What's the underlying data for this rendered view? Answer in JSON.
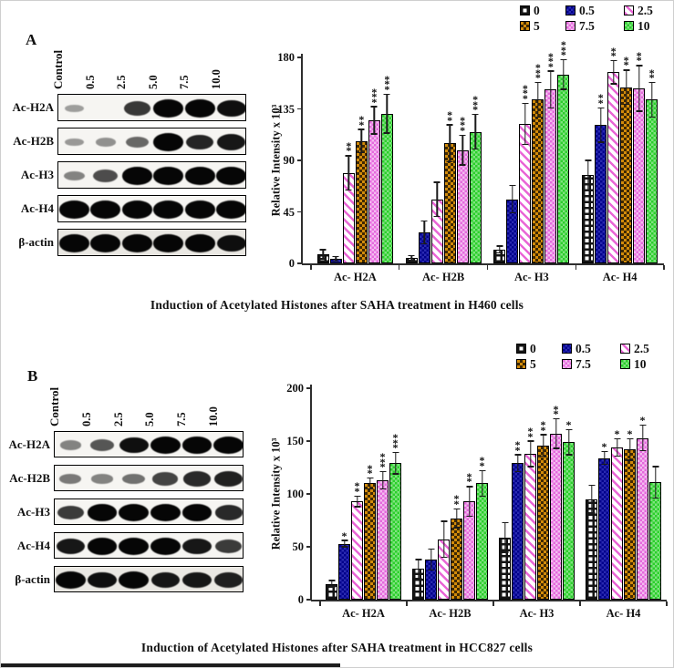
{
  "colors": {
    "dose_0_pattern": "#141414",
    "dose_05_navy": "#00008b",
    "dose_25_pink_stripe": "#e966d6",
    "dose_5_orange": "#d28b0a",
    "dose_75_violet": "#e569dd",
    "dose_10_green": "#2bcf2b",
    "axis": "#2e2e2e"
  },
  "legend": {
    "items": [
      {
        "label": "0",
        "dose": "d0",
        "swatch": "white-black-checker"
      },
      {
        "label": "0.5",
        "dose": "d05",
        "swatch": "solid-navy"
      },
      {
        "label": "2.5",
        "dose": "d25",
        "swatch": "pink-diagonal-stripes"
      },
      {
        "label": "5",
        "dose": "d5",
        "swatch": "orange-black-checks"
      },
      {
        "label": "7.5",
        "dose": "d75",
        "swatch": "violet-white-checks"
      },
      {
        "label": "10",
        "dose": "d10",
        "swatch": "green-checks"
      }
    ]
  },
  "panels": [
    {
      "label": "A",
      "caption": "Induction of Acetylated Histones after SAHA treatment in H460 cells",
      "blot": {
        "lane_headers": [
          "Control",
          "0.5",
          "2.5",
          "5.0",
          "7.5",
          "10.0"
        ],
        "rows": [
          {
            "label": "Ac-H2A",
            "band_intensities": [
              0.15,
              0.03,
              0.72,
              1,
              1,
              0.95
            ]
          },
          {
            "label": "Ac-H2B",
            "band_intensities": [
              0.18,
              0.22,
              0.45,
              1,
              0.82,
              0.9
            ]
          },
          {
            "label": "Ac-H3",
            "band_intensities": [
              0.3,
              0.6,
              1,
              1,
              1,
              1
            ]
          },
          {
            "label": "Ac-H4",
            "band_intensities": [
              1,
              1,
              1,
              1,
              1,
              1
            ]
          },
          {
            "label": "β-actin",
            "band_intensities": [
              1,
              1,
              1,
              1,
              1,
              0.95
            ]
          }
        ]
      }
    },
    {
      "label": "B",
      "caption": "Induction of Acetylated Histones after SAHA treatment in HCC827 cells",
      "blot": {
        "lane_headers": [
          "Control",
          "0.5",
          "2.5",
          "5.0",
          "7.5",
          "10.0"
        ],
        "rows": [
          {
            "label": "Ac-H2A",
            "band_intensities": [
              0.3,
              0.55,
              0.95,
              1,
              1,
              1
            ]
          },
          {
            "label": "Ac-H2B",
            "band_intensities": [
              0.35,
              0.3,
              0.4,
              0.65,
              0.8,
              0.85
            ]
          },
          {
            "label": "Ac-H3",
            "band_intensities": [
              0.7,
              1,
              1,
              1,
              1,
              0.8
            ]
          },
          {
            "label": "Ac-H4",
            "band_intensities": [
              0.9,
              1,
              1,
              1,
              0.9,
              0.7
            ]
          },
          {
            "label": "β-actin",
            "band_intensities": [
              1,
              0.95,
              1,
              0.9,
              0.9,
              0.85
            ]
          }
        ]
      }
    }
  ],
  "chart_data": [
    {
      "type": "bar",
      "panel": "A",
      "title": "Induction of Acetylated Histones after SAHA treatment in H460 cells",
      "xlabel": "",
      "ylabel": "Relative Intensity x 10³",
      "ylim": [
        0,
        180
      ],
      "yticks": [
        0,
        45,
        90,
        135,
        180
      ],
      "categories": [
        "Ac- H2A",
        "Ac- H2B",
        "Ac- H3",
        "Ac- H4"
      ],
      "legend_position": "top-right",
      "legend_labels": [
        "0",
        "0.5",
        "2.5",
        "5",
        "7.5",
        "10"
      ],
      "grid": false,
      "series": [
        {
          "name": "0",
          "values": [
            8,
            5,
            12,
            77
          ],
          "errors": [
            4,
            2,
            3,
            13
          ],
          "sig": [
            "",
            "",
            "",
            ""
          ]
        },
        {
          "name": "0.5",
          "values": [
            4,
            27,
            56,
            121
          ],
          "errors": [
            2,
            10,
            12,
            15
          ],
          "sig": [
            "",
            "",
            "",
            "**"
          ]
        },
        {
          "name": "2.5",
          "values": [
            79,
            56,
            122,
            167
          ],
          "errors": [
            15,
            15,
            18,
            10
          ],
          "sig": [
            "**",
            "",
            "***",
            "**"
          ]
        },
        {
          "name": "5",
          "values": [
            107,
            105,
            143,
            154
          ],
          "errors": [
            10,
            16,
            15,
            15
          ],
          "sig": [
            "**",
            "**",
            "***",
            "**"
          ]
        },
        {
          "name": "7.5",
          "values": [
            125,
            99,
            152,
            153
          ],
          "errors": [
            12,
            13,
            16,
            20
          ],
          "sig": [
            "***",
            "***",
            "***",
            "**"
          ]
        },
        {
          "name": "10",
          "values": [
            131,
            115,
            165,
            143
          ],
          "errors": [
            17,
            15,
            13,
            15
          ],
          "sig": [
            "***",
            "***",
            "***",
            "**"
          ]
        }
      ]
    },
    {
      "type": "bar",
      "panel": "B",
      "title": "Induction of Acetylated Histones after SAHA treatment in HCC827 cells",
      "xlabel": "",
      "ylabel": "Relative Intensity x 10³",
      "ylim": [
        0,
        200
      ],
      "yticks": [
        0,
        50,
        100,
        150,
        200
      ],
      "categories": [
        "Ac- H2A",
        "Ac- H2B",
        "Ac- H3",
        "Ac- H4"
      ],
      "legend_position": "top-right",
      "legend_labels": [
        "0",
        "0.5",
        "2.5",
        "5",
        "7.5",
        "10"
      ],
      "grid": false,
      "series": [
        {
          "name": "0",
          "values": [
            15,
            29,
            59,
            95
          ],
          "errors": [
            3,
            9,
            14,
            13
          ],
          "sig": [
            "",
            "",
            "",
            ""
          ]
        },
        {
          "name": "0.5",
          "values": [
            53,
            38,
            129,
            134
          ],
          "errors": [
            3,
            10,
            8,
            6
          ],
          "sig": [
            "*",
            "",
            "**",
            "*"
          ]
        },
        {
          "name": "2.5",
          "values": [
            93,
            57,
            138,
            144
          ],
          "errors": [
            5,
            17,
            12,
            8
          ],
          "sig": [
            "**",
            "",
            "**",
            "*"
          ]
        },
        {
          "name": "5",
          "values": [
            110,
            77,
            146,
            142
          ],
          "errors": [
            5,
            9,
            10,
            10
          ],
          "sig": [
            "**",
            "**",
            "**",
            "*"
          ]
        },
        {
          "name": "7.5",
          "values": [
            113,
            93,
            157,
            153
          ],
          "errors": [
            8,
            14,
            14,
            12
          ],
          "sig": [
            "***",
            "**",
            "**",
            "*"
          ]
        },
        {
          "name": "10",
          "values": [
            129,
            110,
            149,
            111
          ],
          "errors": [
            10,
            12,
            12,
            15
          ],
          "sig": [
            "***",
            "**",
            "*",
            ""
          ]
        }
      ]
    }
  ]
}
